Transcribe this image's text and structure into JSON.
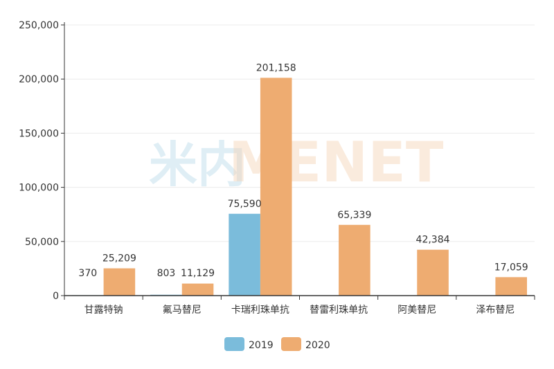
{
  "chart_data": {
    "type": "bar",
    "categories": [
      "甘露特钠",
      "氟马替尼",
      "卡瑞利珠单抗",
      "替雷利珠单抗",
      "阿美替尼",
      "泽布替尼"
    ],
    "series": [
      {
        "name": "2019",
        "color": "#7bbcdb",
        "values": [
          370,
          803,
          75590,
          null,
          null,
          null
        ]
      },
      {
        "name": "2020",
        "color": "#eeac71",
        "values": [
          25209,
          11129,
          201158,
          65339,
          42384,
          17059
        ]
      }
    ],
    "value_labels": {
      "2019": [
        "370",
        "803",
        "75,590",
        "",
        "",
        ""
      ],
      "2020": [
        "25,209",
        "11,129",
        "201,158",
        "65,339",
        "42,384",
        "17,059"
      ]
    },
    "yticks": [
      "0",
      "50,000",
      "100,000",
      "150,000",
      "200,000",
      "250,000"
    ],
    "ylim": [
      0,
      250000
    ],
    "grid": true,
    "legend": "bottom",
    "watermark": "MENET"
  }
}
